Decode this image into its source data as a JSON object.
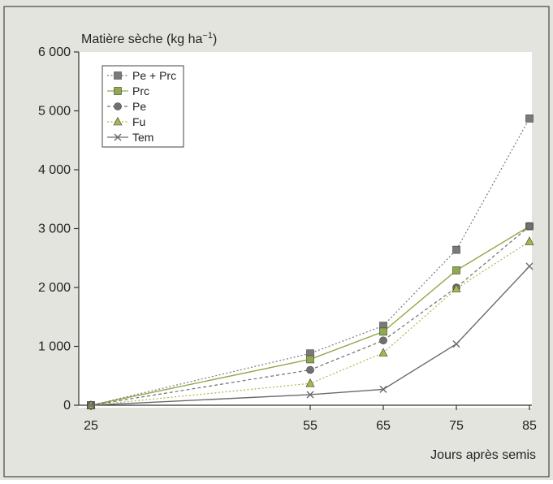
{
  "colors": {
    "page_bg": "#e4e4df",
    "plot_bg": "#ffffff",
    "axis": "#333333",
    "text": "#222222",
    "border": "#444444"
  },
  "chart_data": {
    "type": "line",
    "title": "",
    "ylabel_main": "Matière sèche (kg ha",
    "ylabel_exp": "−1",
    "ylabel_close": ")",
    "xlabel": "Jours après semis",
    "x": [
      25,
      55,
      65,
      75,
      85
    ],
    "xlim": [
      25,
      85
    ],
    "ylim": [
      0,
      6000
    ],
    "yticks": [
      0,
      1000,
      2000,
      3000,
      4000,
      5000,
      6000
    ],
    "ytick_labels": [
      "0",
      "1 000",
      "2 000",
      "3 000",
      "4 000",
      "5 000",
      "6 000"
    ],
    "xtick_labels": [
      "25",
      "55",
      "65",
      "75",
      "85"
    ],
    "grid": false,
    "legend_position": "top-left",
    "series": [
      {
        "name": "Pe + Prc",
        "values": [
          0,
          880,
          1350,
          2640,
          4870
        ],
        "color": "#7a7a7a",
        "marker": "square",
        "line": "dotted"
      },
      {
        "name": "Prc",
        "values": [
          0,
          780,
          1250,
          2290,
          3040
        ],
        "color": "#8faa4a",
        "marker": "square",
        "line": "solid"
      },
      {
        "name": "Pe",
        "values": [
          0,
          600,
          1100,
          2000,
          3040
        ],
        "color": "#707070",
        "marker": "circle",
        "line": "dashed"
      },
      {
        "name": "Fu",
        "values": [
          0,
          370,
          890,
          1980,
          2780
        ],
        "color": "#a6b84a",
        "marker": "triangle",
        "line": "dotted"
      },
      {
        "name": "Tem",
        "values": [
          0,
          180,
          270,
          1040,
          2360
        ],
        "color": "#6a6a6a",
        "marker": "x",
        "line": "solid"
      }
    ]
  }
}
